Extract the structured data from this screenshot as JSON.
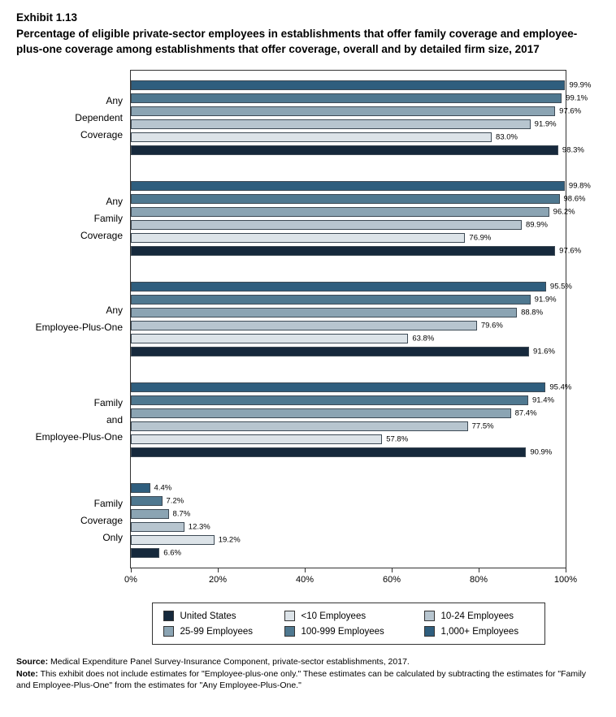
{
  "title": {
    "exhibit": "Exhibit 1.13",
    "text": "Percentage of eligible private-sector employees in establishments that offer family coverage and employee-plus-one coverage among establishments that offer coverage, overall and by detailed firm size, 2017"
  },
  "chart_data": {
    "type": "bar",
    "orientation": "horizontal",
    "title": "Percentage of eligible private-sector employees in establishments that offer family coverage and employee-plus-one coverage among establishments that offer coverage, overall and by detailed firm size, 2017",
    "categories": [
      "Any Dependent Coverage",
      "Any Family Coverage",
      "Any Employee-Plus-One",
      "Family and Employee-Plus-One",
      "Family Coverage Only"
    ],
    "category_label_lines": [
      [
        "Any",
        "Dependent",
        "Coverage"
      ],
      [
        "Any",
        "Family",
        "Coverage"
      ],
      [
        "Any",
        "Employee-Plus-One"
      ],
      [
        "Family",
        "and",
        "Employee-Plus-One"
      ],
      [
        "Family",
        "Coverage",
        "Only"
      ]
    ],
    "series": [
      {
        "name": "1,000+ Employees",
        "color": "#2f5e7e",
        "values": [
          99.9,
          99.8,
          95.5,
          95.4,
          4.4
        ]
      },
      {
        "name": "100-999 Employees",
        "color": "#4f7890",
        "values": [
          99.1,
          98.6,
          91.9,
          91.4,
          7.2
        ]
      },
      {
        "name": "25-99 Employees",
        "color": "#8ba4b3",
        "values": [
          97.6,
          96.2,
          88.8,
          87.4,
          8.7
        ]
      },
      {
        "name": "10-24 Employees",
        "color": "#b7c5cf",
        "values": [
          91.9,
          89.9,
          79.6,
          77.5,
          12.3
        ]
      },
      {
        "name": "<10 Employees",
        "color": "#dce3e8",
        "values": [
          83.0,
          76.9,
          63.8,
          57.8,
          19.2
        ]
      },
      {
        "name": "United States",
        "color": "#16293c",
        "values": [
          98.3,
          97.6,
          91.6,
          90.9,
          6.6
        ]
      }
    ],
    "x_axis": {
      "ticks": [
        "0%",
        "20%",
        "40%",
        "60%",
        "80%",
        "100%"
      ],
      "min": 0,
      "max": 100
    },
    "value_label_suffix": "%",
    "grid": false,
    "legend_position": "bottom"
  },
  "legend": {
    "items": [
      {
        "label": "United States",
        "color": "#16293c"
      },
      {
        "label": "<10 Employees",
        "color": "#dce3e8"
      },
      {
        "label": "10-24 Employees",
        "color": "#b7c5cf"
      },
      {
        "label": "25-99 Employees",
        "color": "#8ba4b3"
      },
      {
        "label": "100-999 Employees",
        "color": "#4f7890"
      },
      {
        "label": "1,000+ Employees",
        "color": "#2f5e7e"
      }
    ]
  },
  "footnotes": {
    "source_label": "Source:",
    "source_text": " Medical Expenditure Panel Survey-Insurance Component, private-sector establishments, 2017.",
    "note_label": "Note:",
    "note_text": " This exhibit does not include estimates for \"Employee-plus-one only.\" These estimates can be calculated by subtracting the estimates for \"Family and Employee-Plus-One\" from the estimates for \"Any Employee-Plus-One.\""
  }
}
